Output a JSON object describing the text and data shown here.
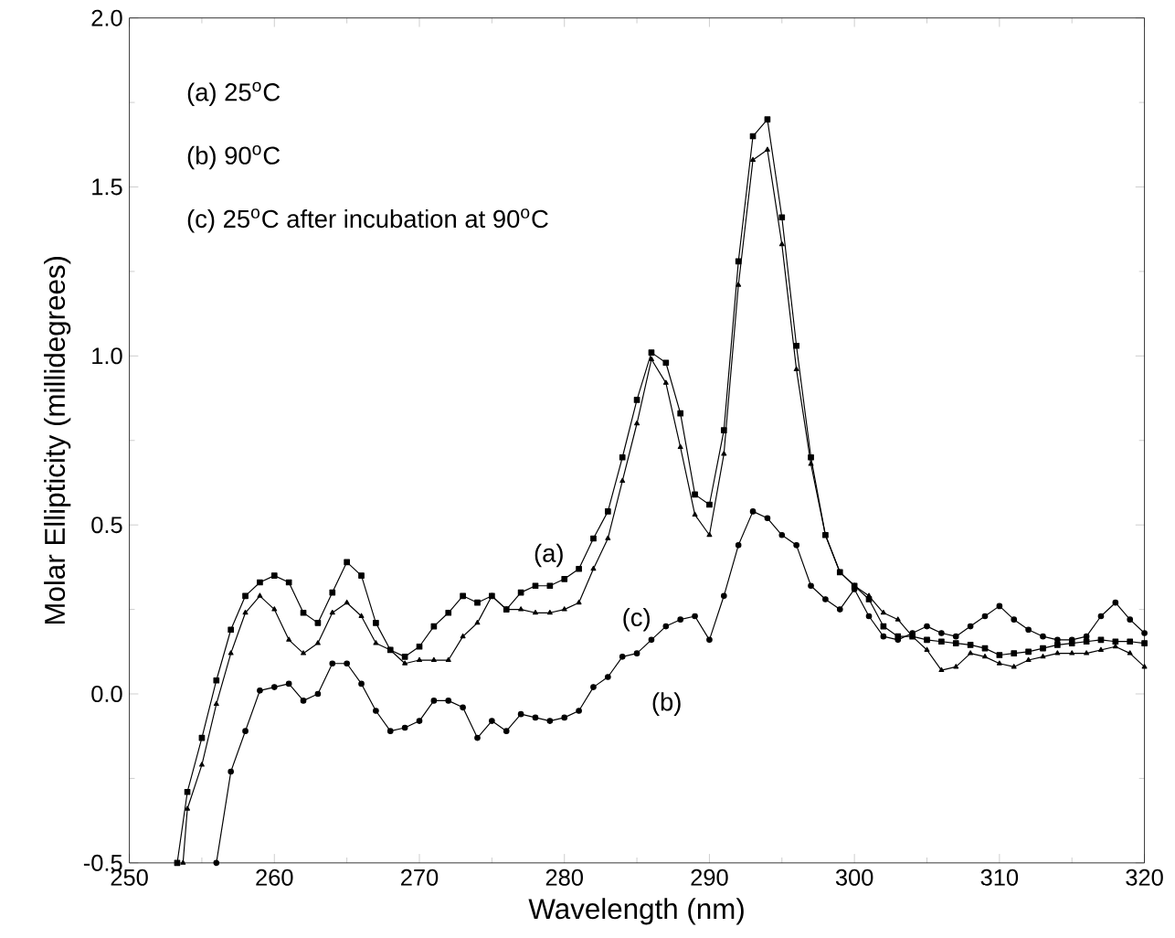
{
  "chart_data": {
    "type": "line",
    "xlabel": "Wavelength (nm)",
    "ylabel": "Molar Ellipticity (millidegrees)",
    "xlim": [
      250,
      320
    ],
    "ylim": [
      -0.5,
      2.0
    ],
    "xticks": [
      250,
      260,
      270,
      280,
      290,
      300,
      310,
      320
    ],
    "yticks": [
      -0.5,
      {
        "value": 0,
        "label": "0.0"
      },
      0.5,
      {
        "value": 1,
        "label": "1.0"
      },
      1.5,
      {
        "value": 2,
        "label": "2.0"
      }
    ],
    "line_style": "solid",
    "series": [
      {
        "color": "#000000",
        "marker": "square",
        "x": [
          253.3,
          254,
          255,
          256,
          257,
          258,
          259,
          260,
          261,
          262,
          263,
          264,
          265,
          266,
          267,
          268,
          269,
          270,
          271,
          272,
          273,
          274,
          275,
          276,
          277,
          278,
          279,
          280,
          281,
          282,
          283,
          284,
          285,
          286,
          287,
          288,
          289,
          290,
          291,
          292,
          293,
          294,
          295,
          296,
          297,
          298,
          299,
          300,
          301,
          302,
          303,
          304,
          305,
          306,
          307,
          308,
          309,
          310,
          311,
          312,
          313,
          314,
          315,
          316,
          317,
          318,
          319,
          320
        ],
        "values": [
          -0.5,
          -0.29,
          -0.13,
          0.04,
          0.19,
          0.29,
          0.33,
          0.35,
          0.33,
          0.24,
          0.21,
          0.3,
          0.39,
          0.35,
          0.21,
          0.13,
          0.11,
          0.14,
          0.2,
          0.24,
          0.29,
          0.27,
          0.29,
          0.25,
          0.3,
          0.32,
          0.32,
          0.34,
          0.37,
          0.46,
          0.54,
          0.7,
          0.87,
          1.01,
          0.98,
          0.83,
          0.59,
          0.56,
          0.78,
          1.28,
          1.65,
          1.7,
          1.41,
          1.03,
          0.7,
          0.47,
          0.36,
          0.32,
          0.28,
          0.2,
          0.17,
          0.17,
          0.16,
          0.155,
          0.15,
          0.145,
          0.135,
          0.115,
          0.12,
          0.125,
          0.135,
          0.145,
          0.15,
          0.155,
          0.16,
          0.155,
          0.155,
          0.15
        ]
      },
      {
        "color": "#000000",
        "marker": "circle",
        "x": [
          256,
          257,
          258,
          259,
          260,
          261,
          262,
          263,
          264,
          265,
          266,
          267,
          268,
          269,
          270,
          271,
          272,
          273,
          274,
          275,
          276,
          277,
          278,
          279,
          280,
          281,
          282,
          283,
          284,
          285,
          286,
          287,
          288,
          289,
          290,
          291,
          292,
          293,
          294,
          295,
          296,
          297,
          298,
          299,
          300,
          301,
          302,
          303,
          304,
          305,
          306,
          307,
          308,
          309,
          310,
          311,
          312,
          313,
          314,
          315,
          316,
          317,
          318,
          319,
          320
        ],
        "values": [
          -0.5,
          -0.23,
          -0.11,
          0.01,
          0.02,
          0.03,
          -0.02,
          0,
          0.09,
          0.09,
          0.03,
          -0.05,
          -0.11,
          -0.1,
          -0.08,
          -0.02,
          -0.02,
          -0.04,
          -0.13,
          -0.08,
          -0.11,
          -0.06,
          -0.07,
          -0.08,
          -0.07,
          -0.05,
          0.02,
          0.05,
          0.11,
          0.12,
          0.16,
          0.2,
          0.22,
          0.23,
          0.16,
          0.29,
          0.44,
          0.54,
          0.52,
          0.47,
          0.44,
          0.32,
          0.28,
          0.25,
          0.31,
          0.23,
          0.17,
          0.16,
          0.18,
          0.2,
          0.18,
          0.17,
          0.2,
          0.23,
          0.26,
          0.22,
          0.19,
          0.17,
          0.16,
          0.16,
          0.17,
          0.23,
          0.27,
          0.22,
          0.18
        ]
      },
      {
        "color": "#000000",
        "marker": "triangle",
        "x": [
          253.7,
          254,
          255,
          256,
          257,
          258,
          259,
          260,
          261,
          262,
          263,
          264,
          265,
          266,
          267,
          268,
          269,
          270,
          271,
          272,
          273,
          274,
          275,
          276,
          277,
          278,
          279,
          280,
          281,
          282,
          283,
          284,
          285,
          286,
          287,
          288,
          289,
          290,
          291,
          292,
          293,
          294,
          295,
          296,
          297,
          298,
          299,
          300,
          301,
          302,
          303,
          304,
          305,
          306,
          307,
          308,
          309,
          310,
          311,
          312,
          313,
          314,
          315,
          316,
          317,
          318,
          319,
          320
        ],
        "values": [
          -0.5,
          -0.34,
          -0.21,
          -0.03,
          0.12,
          0.24,
          0.29,
          0.25,
          0.16,
          0.12,
          0.15,
          0.24,
          0.27,
          0.23,
          0.15,
          0.13,
          0.09,
          0.1,
          0.1,
          0.1,
          0.17,
          0.21,
          0.29,
          0.25,
          0.25,
          0.24,
          0.24,
          0.25,
          0.27,
          0.37,
          0.46,
          0.63,
          0.8,
          0.99,
          0.92,
          0.73,
          0.53,
          0.47,
          0.71,
          1.21,
          1.58,
          1.61,
          1.33,
          0.96,
          0.68,
          0.47,
          0.36,
          0.32,
          0.29,
          0.24,
          0.22,
          0.17,
          0.13,
          0.07,
          0.08,
          0.12,
          0.11,
          0.09,
          0.08,
          0.1,
          0.11,
          0.12,
          0.12,
          0.12,
          0.13,
          0.14,
          0.12,
          0.08
        ]
      }
    ],
    "annotations": [
      "(a) 25$^{o}$C",
      "(b) 90$^{o}$C",
      "(c) 25$^{o}$C after incubation at 90$^{o}$C",
      "(a)",
      "(c)",
      "(b)"
    ]
  }
}
